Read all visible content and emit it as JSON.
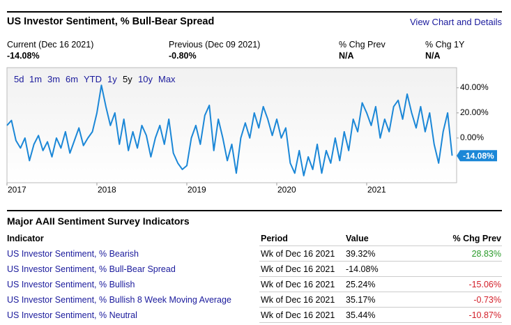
{
  "header": {
    "title": "US Investor Sentiment, % Bull-Bear Spread",
    "link": "View Chart and Details"
  },
  "stats": [
    {
      "label": "Current (Dec 16 2021)",
      "value": "-14.08%"
    },
    {
      "label": "Previous (Dec 09 2021)",
      "value": "-0.80%"
    },
    {
      "label": "% Chg Prev",
      "value": "N/A"
    },
    {
      "label": "% Chg 1Y",
      "value": "N/A"
    }
  ],
  "range_buttons": [
    "5d",
    "1m",
    "3m",
    "6m",
    "YTD",
    "1y",
    "5y",
    "10y",
    "Max"
  ],
  "active_range": "5y",
  "chart_data": {
    "type": "line",
    "color": "#1b87d7",
    "x": [
      2017,
      2017.05,
      2017.1,
      2017.15,
      2017.2,
      2017.25,
      2017.3,
      2017.35,
      2017.4,
      2017.45,
      2017.5,
      2017.55,
      2017.6,
      2017.65,
      2017.7,
      2017.75,
      2017.8,
      2017.85,
      2017.9,
      2017.95,
      2018,
      2018.05,
      2018.1,
      2018.15,
      2018.2,
      2018.25,
      2018.3,
      2018.35,
      2018.4,
      2018.45,
      2018.5,
      2018.55,
      2018.6,
      2018.65,
      2018.7,
      2018.75,
      2018.8,
      2018.85,
      2018.9,
      2018.95,
      2019,
      2019.05,
      2019.1,
      2019.15,
      2019.2,
      2019.25,
      2019.3,
      2019.35,
      2019.4,
      2019.45,
      2019.5,
      2019.55,
      2019.6,
      2019.65,
      2019.7,
      2019.75,
      2019.8,
      2019.85,
      2019.9,
      2019.95,
      2020,
      2020.05,
      2020.1,
      2020.15,
      2020.2,
      2020.25,
      2020.3,
      2020.35,
      2020.4,
      2020.45,
      2020.5,
      2020.55,
      2020.6,
      2020.65,
      2020.7,
      2020.75,
      2020.8,
      2020.85,
      2020.9,
      2020.95,
      2021,
      2021.05,
      2021.1,
      2021.15,
      2021.2,
      2021.25,
      2021.3,
      2021.35,
      2021.4,
      2021.45,
      2021.5,
      2021.55,
      2021.6,
      2021.65,
      2021.7,
      2021.75,
      2021.8,
      2021.85,
      2021.9,
      2021.95
    ],
    "values": [
      10,
      14,
      -2,
      -8,
      0,
      -18,
      -5,
      2,
      -10,
      -3,
      -15,
      0,
      -8,
      5,
      -12,
      -2,
      8,
      -6,
      0,
      5,
      20,
      42,
      25,
      10,
      20,
      -5,
      15,
      -10,
      5,
      -8,
      10,
      2,
      -15,
      0,
      10,
      -5,
      15,
      -12,
      -20,
      -25,
      -22,
      0,
      10,
      -5,
      18,
      26,
      -10,
      15,
      0,
      -18,
      -5,
      -28,
      0,
      12,
      0,
      20,
      8,
      25,
      15,
      2,
      15,
      0,
      8,
      -20,
      -28,
      -10,
      -30,
      -15,
      -25,
      -5,
      -28,
      -10,
      -20,
      0,
      -18,
      5,
      -10,
      15,
      5,
      28,
      20,
      10,
      25,
      0,
      15,
      5,
      25,
      30,
      15,
      35,
      20,
      8,
      25,
      5,
      20,
      -5,
      -20,
      5,
      20,
      -14.08
    ],
    "xlim": [
      2017,
      2022
    ],
    "xticks": [
      2017,
      2018,
      2019,
      2020,
      2021
    ],
    "ylim": [
      -35.6,
      56
    ],
    "yticks": [
      {
        "value": 40,
        "label": "40.00%"
      },
      {
        "value": 20,
        "label": "20.00%"
      },
      {
        "value": 0,
        "label": "0.00%"
      }
    ],
    "grid": false
  },
  "table": {
    "title": "Major AAII Sentiment Survey Indicators",
    "columns": [
      "Indicator",
      "Period",
      "Value",
      "% Chg Prev"
    ],
    "rows": [
      [
        "US Investor Sentiment, % Bearish",
        "Wk of Dec 16 2021",
        "39.32%",
        "28.83%"
      ],
      [
        "US Investor Sentiment, % Bull-Bear Spread",
        "Wk of Dec 16 2021",
        "-14.08%",
        null
      ],
      [
        "US Investor Sentiment, % Bullish",
        "Wk of Dec 16 2021",
        "25.24%",
        "-15.06%"
      ],
      [
        "US Investor Sentiment, % Bullish 8 Week Moving Average",
        "Wk of Dec 16 2021",
        "35.17%",
        "-0.73%"
      ],
      [
        "US Investor Sentiment, % Neutral",
        "Wk of Dec 16 2021",
        "35.44%",
        "-10.87%"
      ]
    ]
  }
}
